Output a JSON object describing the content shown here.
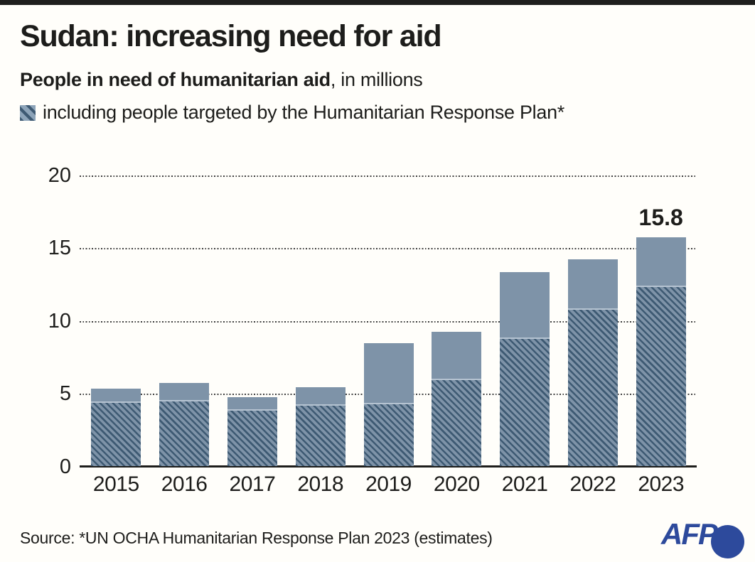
{
  "header": {
    "title": "Sudan: increasing need for aid",
    "subtitle_bold": "People in need of humanitarian aid",
    "subtitle_rest": ", in millions",
    "legend_label": "including people targeted by the Humanitarian Response Plan*"
  },
  "chart_data": {
    "type": "bar",
    "title": "Sudan: increasing need for aid",
    "subtitle": "People in need of humanitarian aid, in millions",
    "categories": [
      "2015",
      "2016",
      "2017",
      "2018",
      "2019",
      "2020",
      "2021",
      "2022",
      "2023"
    ],
    "series": [
      {
        "name": "People in need of humanitarian aid",
        "style": "solid",
        "values": [
          5.4,
          5.8,
          4.8,
          5.5,
          8.5,
          9.3,
          13.4,
          14.3,
          15.8
        ]
      },
      {
        "name": "including people targeted by the Humanitarian Response Plan*",
        "style": "hatched overlay",
        "values": [
          4.5,
          4.6,
          4.0,
          4.3,
          4.4,
          6.1,
          8.9,
          10.9,
          12.5
        ]
      }
    ],
    "ylim": [
      0,
      20
    ],
    "yticks": [
      0,
      5,
      10,
      15,
      20
    ],
    "grid": "horizontal dotted",
    "legend_position": "top-left under subtitle",
    "annotation": {
      "category": "2023",
      "text": "15.8"
    }
  },
  "footer": {
    "source": "Source: *UN OCHA Humanitarian Response Plan 2023 (estimates)",
    "brand": "AFP"
  },
  "colors": {
    "bar_fill": "#7e93a8",
    "hatch_stripe": "#3e5a73",
    "hatch_top_line": "#b5c3d1",
    "axis": "#1d1d1b",
    "text": "#1d1d1b",
    "top_bar": "#1f1f1d",
    "afp_blue": "#2d4a9c",
    "background": "#fffefa"
  }
}
